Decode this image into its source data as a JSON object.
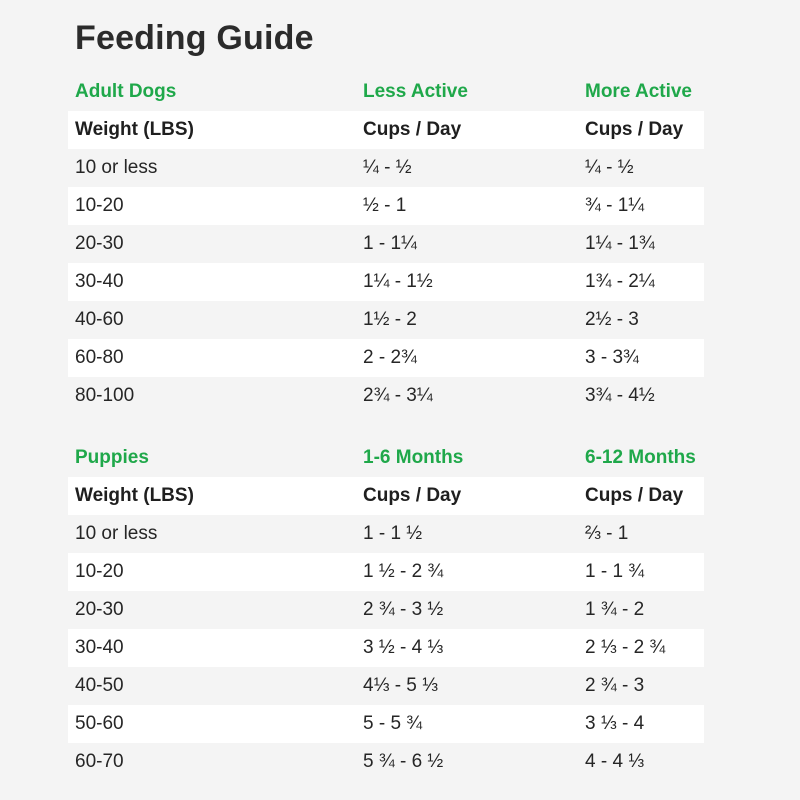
{
  "title": "Feeding Guide",
  "colors": {
    "accent": "#1fa84a",
    "row_shade": "#ffffff",
    "background": "#f4f4f4"
  },
  "adult": {
    "section": [
      "Adult Dogs",
      "Less Active",
      "More Active"
    ],
    "header": [
      "Weight (LBS)",
      "Cups / Day",
      "Cups / Day"
    ],
    "rows": [
      [
        "10 or less",
        "¼ - ½",
        "¼ - ½"
      ],
      [
        "10-20",
        "½ - 1",
        "¾ - 1¼"
      ],
      [
        "20-30",
        "1 - 1¼",
        "1¼ - 1¾"
      ],
      [
        "30-40",
        "1¼ - 1½",
        "1¾ - 2¼"
      ],
      [
        "40-60",
        "1½ - 2",
        "2½ - 3"
      ],
      [
        "60-80",
        "2 - 2¾",
        "3 - 3¾"
      ],
      [
        "80-100",
        "2¾ - 3¼",
        "3¾ - 4½"
      ]
    ]
  },
  "puppy": {
    "section": [
      "Puppies",
      "1-6 Months",
      "6-12 Months"
    ],
    "header": [
      "Weight (LBS)",
      "Cups / Day",
      "Cups / Day"
    ],
    "rows": [
      [
        "10 or less",
        "1 - 1 ½",
        "⅔ - 1"
      ],
      [
        "10-20",
        "1 ½ - 2 ¾",
        "1 - 1 ¾"
      ],
      [
        "20-30",
        "2 ¾ - 3 ½",
        "1 ¾ - 2"
      ],
      [
        "30-40",
        "3 ½ - 4 ⅓",
        "2 ⅓ - 2 ¾"
      ],
      [
        "40-50",
        "4⅓ - 5 ⅓",
        "2 ¾ - 3"
      ],
      [
        "50-60",
        "5 - 5 ¾",
        "3 ⅓ - 4"
      ],
      [
        "60-70",
        "5 ¾ - 6 ½",
        "4 - 4 ⅓"
      ]
    ]
  }
}
